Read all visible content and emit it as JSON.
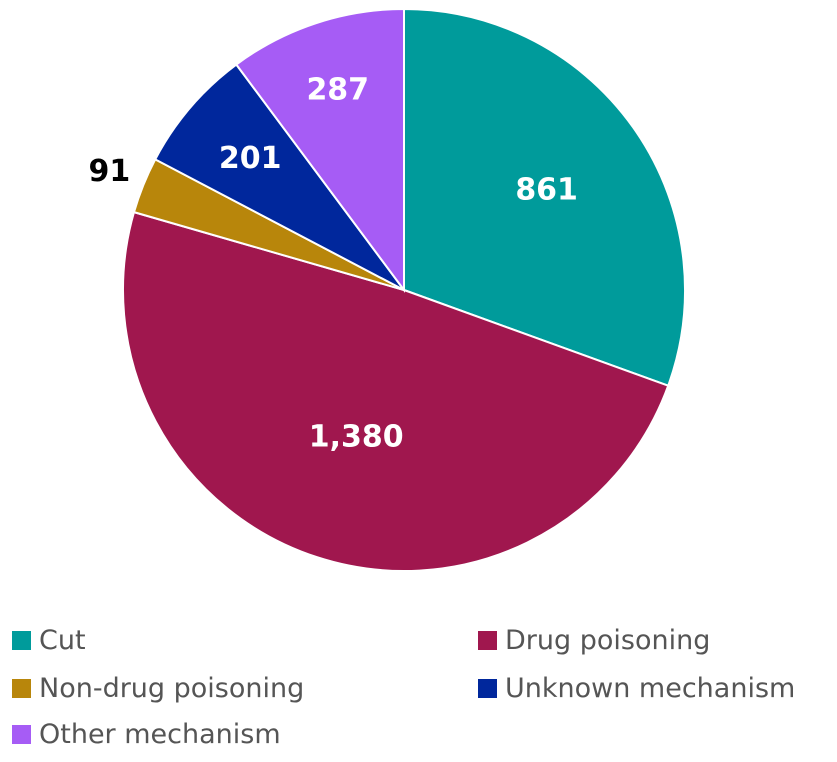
{
  "chart_data": {
    "type": "pie",
    "categories": [
      "Cut",
      "Drug poisoning",
      "Non-drug poisoning",
      "Unknown mechanism",
      "Other mechanism"
    ],
    "values": [
      861,
      1380,
      91,
      201,
      287
    ],
    "value_labels": [
      "861",
      "1,380",
      "91",
      "201",
      "287"
    ],
    "colors": [
      "#009b9b",
      "#a0174e",
      "#b8860b",
      "#00279c",
      "#a65cf5"
    ],
    "label_colors": [
      "#ffffff",
      "#ffffff",
      "#000000",
      "#ffffff",
      "#ffffff"
    ],
    "start_angle_deg": 0,
    "direction": "clockwise",
    "legend_position": "bottom",
    "legend": [
      {
        "label": "Cut",
        "color": "#009b9b"
      },
      {
        "label": "Drug poisoning",
        "color": "#a0174e"
      },
      {
        "label": "Non-drug poisoning",
        "color": "#b8860b"
      },
      {
        "label": "Unknown mechanism",
        "color": "#00279c"
      },
      {
        "label": "Other mechanism",
        "color": "#a65cf5"
      }
    ]
  }
}
